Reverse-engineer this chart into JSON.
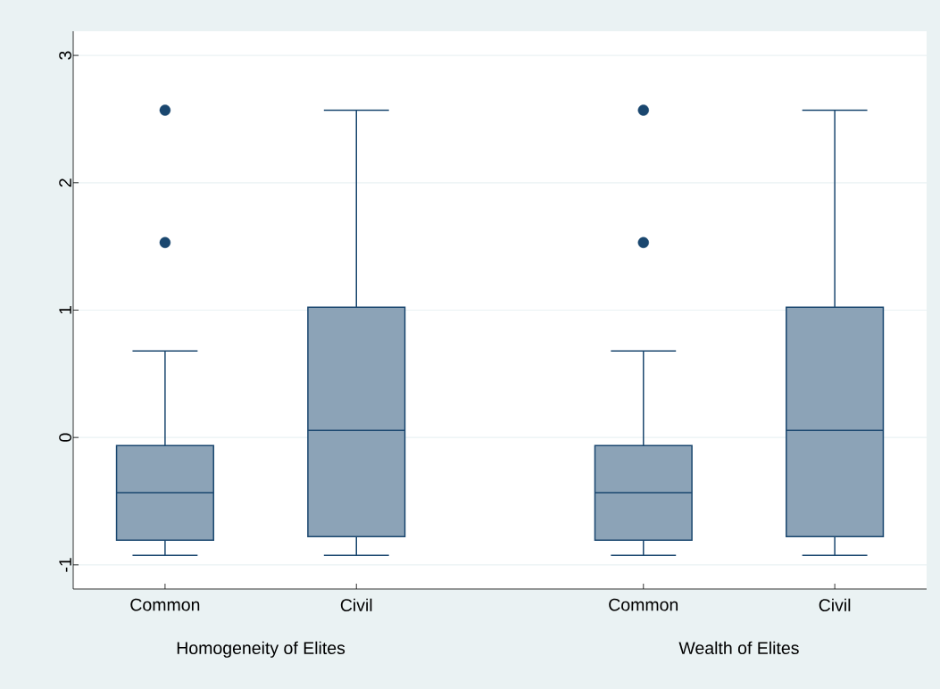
{
  "chart_data": {
    "type": "box",
    "categories": [
      "Common",
      "Civil",
      "Common",
      "Civil"
    ],
    "annotations": [
      "Homogeneity of Elites",
      "Wealth of Elites"
    ],
    "color": "#1a476f",
    "boxes": [
      {
        "low": -0.925,
        "q1": -0.806,
        "median": -0.434,
        "q3": -0.063,
        "high": 0.68,
        "outliers": [
          2.57,
          1.53
        ]
      },
      {
        "low": -0.925,
        "q1": -0.778,
        "median": 0.056,
        "q3": 1.023,
        "high": 2.57
      },
      {
        "low": -0.925,
        "q1": -0.806,
        "median": -0.434,
        "q3": -0.063,
        "high": 0.68,
        "outliers": [
          2.57,
          1.53
        ]
      },
      {
        "low": -0.925,
        "q1": -0.778,
        "median": 0.056,
        "q3": 1.023,
        "high": 2.57
      }
    ],
    "ylim": [
      -1.19,
      3.19
    ],
    "yticks": [
      -1,
      0,
      1,
      2,
      3
    ],
    "grid": "y"
  }
}
